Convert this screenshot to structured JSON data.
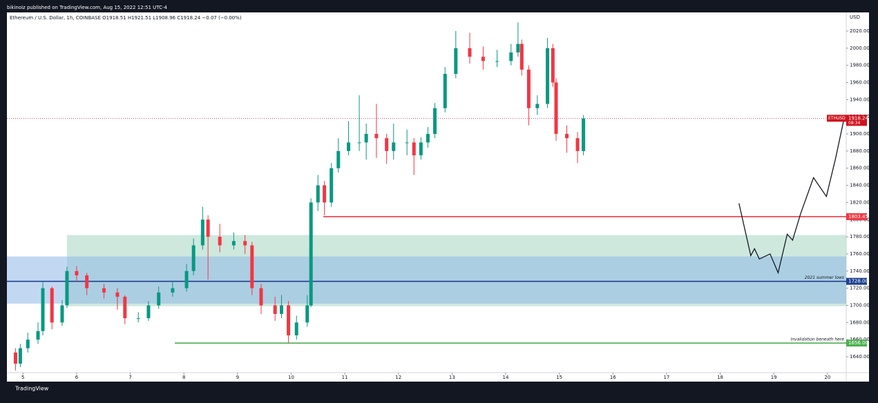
{
  "header": {
    "attribution": "bikinoiz published on TradingView.com, Aug 15, 2022 12:51 UTC-4"
  },
  "footer": {
    "brand": "TradingView"
  },
  "chart_data": {
    "type": "candlestick",
    "title": "Ethereum / U.S. Dollar, 1h, COINBASE  O1918.51 H1921.51 L1908.96 C1918.24 −0.07 (−0.00%)",
    "y_unit": "USD",
    "up_color": "#089981",
    "down_color": "#f23645",
    "x": [
      4.86,
      4.95,
      5.09,
      5.28,
      5.37,
      5.54,
      5.73,
      5.82,
      6.0,
      6.19,
      6.51,
      6.76,
      6.9,
      7.15,
      7.34,
      7.53,
      7.79,
      8.05,
      8.18,
      8.35,
      8.45,
      8.67,
      8.93,
      9.14,
      9.27,
      9.44,
      9.7,
      9.82,
      9.95,
      10.1,
      10.3,
      10.37,
      10.5,
      10.62,
      10.75,
      10.88,
      11.07,
      11.27,
      11.4,
      11.59,
      11.78,
      11.91,
      12.16,
      12.29,
      12.42,
      12.55,
      12.68,
      12.87,
      13.07,
      13.33,
      13.58,
      13.84,
      14.1,
      14.23,
      14.3,
      14.43,
      14.59,
      14.78,
      14.88,
      14.94,
      15.14,
      15.34,
      15.45
    ],
    "open": [
      1645,
      1632,
      1650,
      1660,
      1670,
      1720,
      1680,
      1700,
      1740,
      1735,
      1720,
      1715,
      1710,
      1685,
      1685,
      1700,
      1715,
      1720,
      1740,
      1770,
      1800,
      1780,
      1770,
      1775,
      1770,
      1720,
      1700,
      1690,
      1700,
      1665,
      1680,
      1700,
      1820,
      1840,
      1820,
      1860,
      1880,
      1890,
      1890,
      1900,
      1895,
      1880,
      1890,
      1890,
      1875,
      1890,
      1900,
      1930,
      1970,
      2000,
      1990,
      1985,
      1985,
      1995,
      2005,
      1975,
      1930,
      1935,
      2000,
      1960,
      1900,
      1895,
      1880
    ],
    "high": [
      1650,
      1655,
      1668,
      1680,
      1728,
      1722,
      1706,
      1745,
      1746,
      1738,
      1725,
      1720,
      1712,
      1692,
      1705,
      1722,
      1728,
      1748,
      1778,
      1815,
      1805,
      1795,
      1785,
      1782,
      1774,
      1725,
      1710,
      1712,
      1705,
      1688,
      1712,
      1825,
      1852,
      1845,
      1866,
      1895,
      1915,
      1945,
      1912,
      1935,
      1900,
      1912,
      1905,
      1895,
      1896,
      1908,
      1936,
      1978,
      2020,
      2018,
      2002,
      1998,
      2005,
      2030,
      2010,
      1980,
      1945,
      2012,
      2005,
      1965,
      1910,
      1902,
      1922
    ],
    "low": [
      1624,
      1628,
      1645,
      1655,
      1665,
      1672,
      1676,
      1697,
      1728,
      1712,
      1708,
      1695,
      1678,
      1680,
      1682,
      1696,
      1710,
      1716,
      1735,
      1765,
      1730,
      1762,
      1765,
      1760,
      1712,
      1690,
      1682,
      1685,
      1656,
      1660,
      1675,
      1698,
      1810,
      1805,
      1815,
      1855,
      1875,
      1880,
      1870,
      1872,
      1865,
      1870,
      1875,
      1852,
      1870,
      1884,
      1895,
      1925,
      1965,
      1982,
      1975,
      1978,
      1980,
      1990,
      1968,
      1910,
      1922,
      1930,
      1955,
      1892,
      1878,
      1866,
      1875
    ],
    "close": [
      1632,
      1650,
      1660,
      1670,
      1720,
      1680,
      1700,
      1740,
      1735,
      1720,
      1715,
      1710,
      1685,
      1685,
      1700,
      1715,
      1720,
      1740,
      1770,
      1800,
      1780,
      1770,
      1775,
      1770,
      1720,
      1700,
      1690,
      1700,
      1665,
      1680,
      1700,
      1820,
      1840,
      1820,
      1860,
      1880,
      1890,
      1890,
      1900,
      1895,
      1880,
      1890,
      1890,
      1875,
      1890,
      1900,
      1930,
      1970,
      2000,
      1990,
      1985,
      1985,
      1995,
      2005,
      1975,
      1930,
      1935,
      2000,
      1960,
      1900,
      1895,
      1880,
      1918
    ],
    "xlim": [
      4.7,
      20.35
    ],
    "xticks": [
      5,
      6,
      7,
      8,
      9,
      10,
      11,
      12,
      13,
      14,
      15,
      16,
      17,
      18,
      19,
      20
    ],
    "ylim": [
      1621.5,
      2041.7
    ],
    "yticks": [
      {
        "value": 1640,
        "label": "1640.00"
      },
      {
        "value": 1660,
        "label": "1660.00"
      },
      {
        "value": 1680,
        "label": "1680.00"
      },
      {
        "value": 1700,
        "label": "1700.00"
      },
      {
        "value": 1720,
        "label": "1720.00"
      },
      {
        "value": 1740,
        "label": "1740.00"
      },
      {
        "value": 1760,
        "label": "1760.00"
      },
      {
        "value": 1780,
        "label": "1780.00"
      },
      {
        "value": 1800,
        "label": "1800.00"
      },
      {
        "value": 1820,
        "label": "1820.00"
      },
      {
        "value": 1840,
        "label": "1840.00"
      },
      {
        "value": 1860,
        "label": "1860.00"
      },
      {
        "value": 1880,
        "label": "1880.00"
      },
      {
        "value": 1900,
        "label": "1900.00"
      },
      {
        "value": 1920,
        "label": "1920.00"
      },
      {
        "value": 1940,
        "label": "1940.00"
      },
      {
        "value": 1960,
        "label": "1960.00"
      },
      {
        "value": 1980,
        "label": "1980.00"
      },
      {
        "value": 2000,
        "label": "2000.00"
      },
      {
        "value": 2020,
        "label": "2020.00"
      }
    ],
    "grid": false,
    "zones": [
      {
        "low": 1699,
        "high": 1782,
        "from": 5.82,
        "color": "#a5d6c3"
      },
      {
        "low": 1702,
        "high": 1757,
        "color": "#90b8e8"
      }
    ],
    "levels": [
      {
        "value": 1803.45,
        "label": "1803.45",
        "from": 10.6,
        "color": "#f23645"
      },
      {
        "value": 1728,
        "label": "1728.00",
        "color": "#1e3f8f",
        "note": "2021 summer lows"
      },
      {
        "value": 1656,
        "label": "1656.00",
        "from": 7.83,
        "color": "#4caf50",
        "note": "Invalidation beneath here"
      }
    ],
    "last": {
      "symbol": "ETHUSD",
      "value": 1918.24,
      "label": "1918.24",
      "countdown": "08:34",
      "color": "#d0121d"
    },
    "projection": {
      "x": [
        18.35,
        18.57,
        18.64,
        18.73,
        18.93,
        19.08,
        19.25,
        19.35,
        19.5,
        19.74,
        19.98,
        20.15,
        20.3
      ],
      "y": [
        1819,
        1758,
        1766,
        1754,
        1760,
        1738,
        1783,
        1776,
        1807,
        1849,
        1827,
        1871,
        1915
      ]
    }
  }
}
